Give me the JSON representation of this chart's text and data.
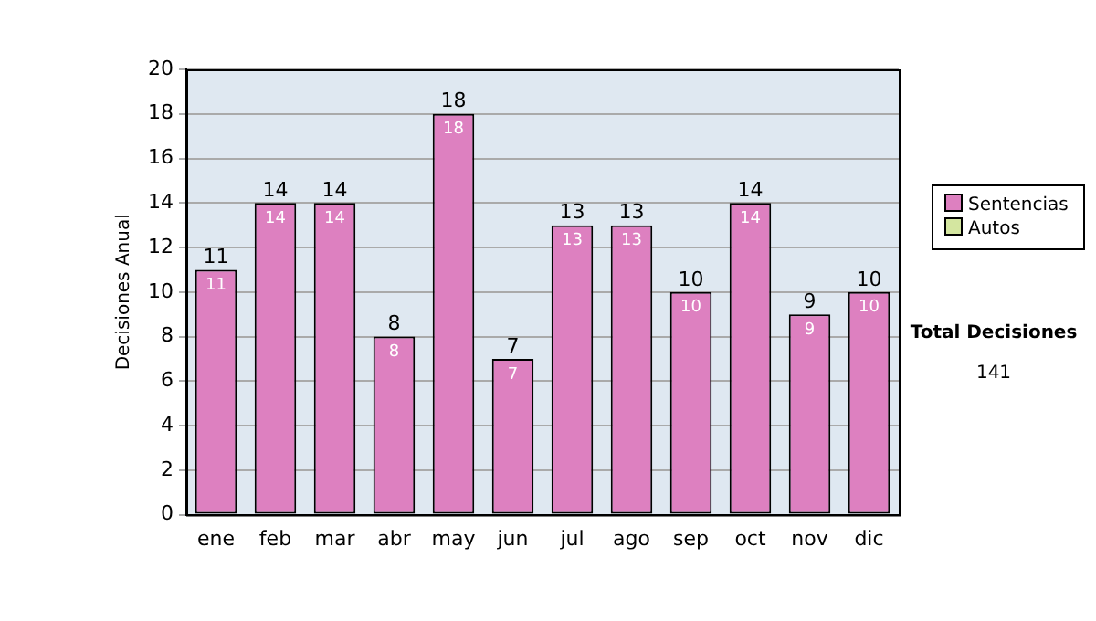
{
  "chart_data": {
    "type": "bar",
    "stacked": true,
    "ylabel": "Decisiones Anual",
    "categories": [
      "ene",
      "feb",
      "mar",
      "abr",
      "may",
      "jun",
      "jul",
      "ago",
      "sep",
      "oct",
      "nov",
      "dic"
    ],
    "series": [
      {
        "name": "Sentencias",
        "color": "#dd80c0",
        "values": [
          11,
          14,
          14,
          8,
          18,
          7,
          13,
          13,
          10,
          14,
          9,
          10
        ],
        "value_labels": [
          "11",
          "14",
          "14",
          "8",
          "18",
          "7",
          "13",
          "13",
          "10",
          "14",
          "9",
          "10"
        ]
      },
      {
        "name": "Autos",
        "color": "#d4e6a0",
        "values": [
          0,
          0,
          0,
          0,
          0,
          0,
          0,
          0,
          0,
          0,
          0,
          0
        ]
      }
    ],
    "totals": [
      "11",
      "14",
      "14",
      "8",
      "18",
      "7",
      "13",
      "13",
      "10",
      "14",
      "9",
      "10"
    ],
    "ylim": [
      0,
      20
    ],
    "yticks": [
      0,
      2,
      4,
      6,
      8,
      10,
      12,
      14,
      16,
      18,
      20
    ],
    "grid": "y",
    "legend": "right",
    "annotations": [
      "Total Decisiones",
      "141"
    ]
  }
}
